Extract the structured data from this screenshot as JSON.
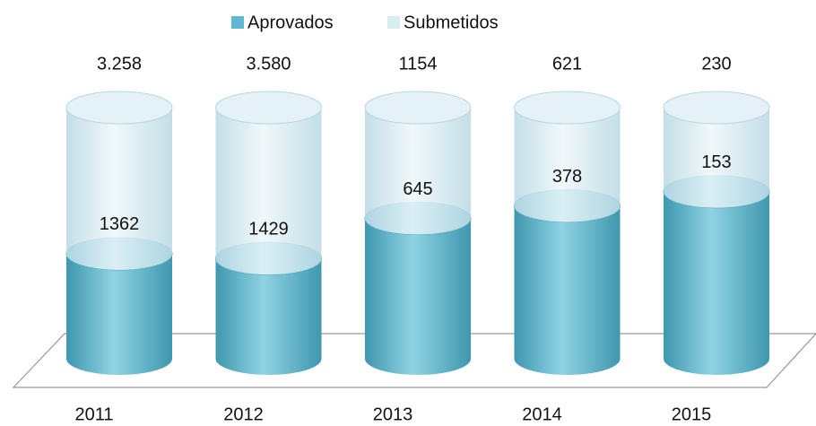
{
  "chart_data": {
    "type": "cylinder",
    "categories": [
      "2011",
      "2012",
      "2013",
      "2014",
      "2015"
    ],
    "series": [
      {
        "name": "Aprovados",
        "color": "#5fb8d0",
        "values": [
          1362,
          1429,
          645,
          378,
          153
        ]
      },
      {
        "name": "Submetidos",
        "color": "#dbedf4",
        "values": [
          3258,
          3580,
          1154,
          621,
          230
        ],
        "value_labels": [
          "3.258",
          "3.580",
          "1154",
          "621",
          "230"
        ]
      }
    ],
    "legend": "top"
  }
}
